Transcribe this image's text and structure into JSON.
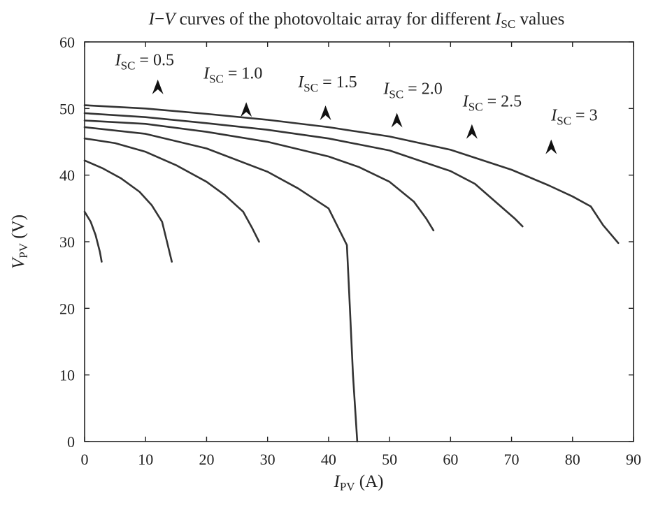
{
  "chart_data": {
    "type": "line",
    "title": "I−V curves of the photovoltaic array for different I_SC values",
    "title_parts": [
      "I",
      "−",
      "V",
      " curves of the photovoltaic array for different ",
      "I",
      "SC",
      " values"
    ],
    "xlabel": "I_PV (A)",
    "xlabel_parts": [
      "I",
      "PV",
      " (A)"
    ],
    "ylabel": "V_PV (V)",
    "ylabel_parts": [
      "V",
      "PV",
      " (V)"
    ],
    "xlim": [
      0,
      90
    ],
    "ylim": [
      0,
      60
    ],
    "xticks": [
      0,
      10,
      20,
      30,
      40,
      50,
      60,
      70,
      80,
      90
    ],
    "yticks": [
      0,
      10,
      20,
      30,
      40,
      50,
      60
    ],
    "grid": false,
    "legend": "none",
    "line_color": "#333333",
    "series": [
      {
        "points": [
          [
            0,
            34.5
          ],
          [
            1.0,
            33
          ],
          [
            1.8,
            31
          ],
          [
            2.5,
            28.5
          ],
          [
            2.8,
            27
          ]
        ]
      },
      {
        "points": [
          [
            0,
            42.2
          ],
          [
            3,
            41
          ],
          [
            6,
            39.5
          ],
          [
            9,
            37.5
          ],
          [
            11,
            35.5
          ],
          [
            12.7,
            33
          ],
          [
            13.5,
            30
          ],
          [
            14.3,
            27
          ]
        ]
      },
      {
        "points": [
          [
            0,
            45.5
          ],
          [
            5,
            44.8
          ],
          [
            10,
            43.5
          ],
          [
            15,
            41.5
          ],
          [
            20,
            39
          ],
          [
            23,
            37
          ],
          [
            26,
            34.5
          ],
          [
            27.5,
            32
          ],
          [
            28.6,
            30
          ]
        ]
      },
      {
        "points": [
          [
            0,
            47.2
          ],
          [
            10,
            46.2
          ],
          [
            20,
            44
          ],
          [
            30,
            40.5
          ],
          [
            35,
            38
          ],
          [
            40,
            35
          ],
          [
            43,
            29.5
          ],
          [
            43.5,
            20
          ],
          [
            44,
            10
          ],
          [
            44.7,
            0
          ]
        ]
      },
      {
        "points": [
          [
            0,
            48.2
          ],
          [
            10,
            47.7
          ],
          [
            20,
            46.5
          ],
          [
            30,
            45
          ],
          [
            40,
            42.8
          ],
          [
            45,
            41.2
          ],
          [
            50,
            39
          ],
          [
            54,
            36
          ],
          [
            56,
            33.5
          ],
          [
            57.2,
            31.7
          ]
        ]
      },
      {
        "points": [
          [
            0,
            49.3
          ],
          [
            10,
            48.7
          ],
          [
            20,
            47.8
          ],
          [
            30,
            46.8
          ],
          [
            40,
            45.5
          ],
          [
            50,
            43.7
          ],
          [
            60,
            40.6
          ],
          [
            64,
            38.7
          ],
          [
            68,
            35.5
          ],
          [
            70.5,
            33.5
          ],
          [
            71.8,
            32.3
          ]
        ]
      },
      {
        "points": [
          [
            0,
            50.5
          ],
          [
            10,
            50
          ],
          [
            20,
            49.2
          ],
          [
            30,
            48.3
          ],
          [
            40,
            47.2
          ],
          [
            50,
            45.8
          ],
          [
            60,
            43.8
          ],
          [
            70,
            40.8
          ],
          [
            76,
            38.5
          ],
          [
            80,
            36.8
          ],
          [
            83,
            35.3
          ],
          [
            85,
            32.5
          ],
          [
            87.5,
            29.8
          ]
        ]
      }
    ],
    "annotations": [
      {
        "name": "I",
        "sub": "SC",
        "text": " = 0.5",
        "label_at": [
          5.0,
          56.5
        ],
        "arrow_at": [
          12.0,
          53.2
        ]
      },
      {
        "name": "I",
        "sub": "SC",
        "text": " = 1.0",
        "label_at": [
          19.5,
          54.5
        ],
        "arrow_at": [
          26.5,
          49.8
        ]
      },
      {
        "name": "I",
        "sub": "SC",
        "text": " = 1.5",
        "label_at": [
          35.0,
          53.2
        ],
        "arrow_at": [
          39.5,
          49.3
        ]
      },
      {
        "name": "I",
        "sub": "SC",
        "text": " = 2.0",
        "label_at": [
          49.0,
          52.2
        ],
        "arrow_at": [
          51.2,
          48.2
        ]
      },
      {
        "name": "I",
        "sub": "SC",
        "text": " = 2.5",
        "label_at": [
          62.0,
          50.3
        ],
        "arrow_at": [
          63.5,
          46.5
        ]
      },
      {
        "name": "I",
        "sub": "SC",
        "text": " = 3",
        "label_at": [
          76.5,
          48.2
        ],
        "arrow_at": [
          76.5,
          44.2
        ]
      }
    ]
  }
}
